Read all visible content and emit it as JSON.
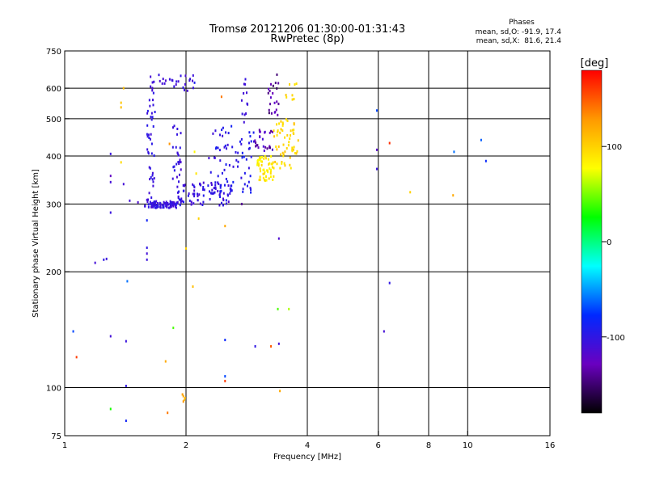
{
  "chart_data": {
    "type": "scatter",
    "title": "Tromsø 20121206 01:30:00-01:31:43",
    "subtitle": "RwPretec (8p)",
    "info": {
      "heading": "Phases",
      "line_o": "mean, sd,O: -91.9, 17.4",
      "line_x": "mean, sd,X:  81.6, 21.4"
    },
    "xlabel": "Frequency [MHz]",
    "ylabel": "Stationary phase Virtual Height [km]",
    "xscale": "log",
    "yscale": "log",
    "xlim": [
      1,
      16
    ],
    "ylim": [
      75,
      750
    ],
    "xticks": [
      1,
      2,
      4,
      6,
      8,
      10,
      16
    ],
    "xgrid": [
      2,
      4,
      6,
      8,
      10
    ],
    "yticks": [
      75,
      100,
      200,
      300,
      400,
      500,
      600,
      750
    ],
    "ygrid": [
      100,
      200,
      300,
      400,
      500,
      600
    ],
    "grid": true,
    "colorbar": {
      "label": "[deg]",
      "range": [
        -180,
        180
      ],
      "ticks": [
        100,
        0,
        -100
      ],
      "colors": [
        "#000000",
        "#6a00c0",
        "#0028ff",
        "#00ffff",
        "#00ff00",
        "#ffff00",
        "#ff9900",
        "#ff0000"
      ]
    },
    "clusters": [
      {
        "x": [
          1.58,
          1.9
        ],
        "y": [
          293,
          305
        ],
        "n": 90,
        "phase": [
          -115,
          -95
        ]
      },
      {
        "x": [
          1.9,
          2.6
        ],
        "y": [
          297,
          345
        ],
        "n": 90,
        "phase": [
          -115,
          -90
        ]
      },
      {
        "x": [
          2.3,
          2.95
        ],
        "y": [
          320,
          480
        ],
        "n": 70,
        "phase": [
          -110,
          -85
        ]
      },
      {
        "x": [
          1.6,
          1.68
        ],
        "y": [
          305,
          600
        ],
        "n": 40,
        "phase": [
          -110,
          -95
        ]
      },
      {
        "x": [
          1.6,
          2.1
        ],
        "y": [
          590,
          650
        ],
        "n": 30,
        "phase": [
          -115,
          -100
        ]
      },
      {
        "x": [
          1.85,
          1.95
        ],
        "y": [
          320,
          490
        ],
        "n": 25,
        "phase": [
          -115,
          -95
        ]
      },
      {
        "x": [
          2.75,
          2.85
        ],
        "y": [
          480,
          640
        ],
        "n": 12,
        "phase": [
          -110,
          -100
        ]
      },
      {
        "x": [
          2.95,
          3.3
        ],
        "y": [
          395,
          470
        ],
        "n": 25,
        "phase": [
          -145,
          -110
        ]
      },
      {
        "x": [
          3.2,
          3.4
        ],
        "y": [
          510,
          660
        ],
        "n": 22,
        "phase": [
          -155,
          -120
        ]
      },
      {
        "x": [
          3.0,
          3.3
        ],
        "y": [
          345,
          400
        ],
        "n": 55,
        "phase": [
          75,
          100
        ]
      },
      {
        "x": [
          3.3,
          3.8
        ],
        "y": [
          370,
          500
        ],
        "n": 60,
        "phase": [
          85,
          110
        ]
      },
      {
        "x": [
          3.5,
          3.8
        ],
        "y": [
          560,
          620
        ],
        "n": 8,
        "phase": [
          90,
          105
        ]
      }
    ],
    "points": [
      {
        "x": 1.3,
        "y": 405,
        "phase": -105
      },
      {
        "x": 1.3,
        "y": 355,
        "phase": -125
      },
      {
        "x": 1.3,
        "y": 342,
        "phase": -110
      },
      {
        "x": 1.3,
        "y": 285,
        "phase": -105
      },
      {
        "x": 1.25,
        "y": 215,
        "phase": -100
      },
      {
        "x": 1.27,
        "y": 216,
        "phase": -105
      },
      {
        "x": 1.19,
        "y": 211,
        "phase": -110
      },
      {
        "x": 1.4,
        "y": 338,
        "phase": -110
      },
      {
        "x": 1.38,
        "y": 550,
        "phase": 105
      },
      {
        "x": 1.38,
        "y": 535,
        "phase": 110
      },
      {
        "x": 1.4,
        "y": 600,
        "phase": 110
      },
      {
        "x": 1.38,
        "y": 385,
        "phase": 95
      },
      {
        "x": 1.45,
        "y": 306,
        "phase": -110
      },
      {
        "x": 1.52,
        "y": 303,
        "phase": -115
      },
      {
        "x": 1.6,
        "y": 272,
        "phase": -85
      },
      {
        "x": 1.6,
        "y": 231,
        "phase": -100
      },
      {
        "x": 1.6,
        "y": 223,
        "phase": -110
      },
      {
        "x": 1.6,
        "y": 215,
        "phase": -105
      },
      {
        "x": 1.43,
        "y": 189,
        "phase": -60
      },
      {
        "x": 1.3,
        "y": 136,
        "phase": -110
      },
      {
        "x": 1.42,
        "y": 132,
        "phase": -105
      },
      {
        "x": 1.05,
        "y": 140,
        "phase": -70
      },
      {
        "x": 1.07,
        "y": 120,
        "phase": 160
      },
      {
        "x": 1.3,
        "y": 88,
        "phase": 30
      },
      {
        "x": 1.42,
        "y": 101,
        "phase": -100
      },
      {
        "x": 1.42,
        "y": 82,
        "phase": -85
      },
      {
        "x": 1.97,
        "y": 95,
        "phase": 120
      },
      {
        "x": 1.98,
        "y": 93,
        "phase": 110
      },
      {
        "x": 1.96,
        "y": 96,
        "phase": 125
      },
      {
        "x": 1.99,
        "y": 94,
        "phase": 115
      },
      {
        "x": 1.97,
        "y": 92,
        "phase": 130
      },
      {
        "x": 1.8,
        "y": 86,
        "phase": 140
      },
      {
        "x": 1.78,
        "y": 117,
        "phase": 120
      },
      {
        "x": 1.86,
        "y": 143,
        "phase": 40
      },
      {
        "x": 2.08,
        "y": 183,
        "phase": 110
      },
      {
        "x": 2.0,
        "y": 230,
        "phase": 100
      },
      {
        "x": 2.15,
        "y": 275,
        "phase": 100
      },
      {
        "x": 2.5,
        "y": 133,
        "phase": -80
      },
      {
        "x": 2.5,
        "y": 107,
        "phase": -70
      },
      {
        "x": 2.5,
        "y": 104,
        "phase": 160
      },
      {
        "x": 2.5,
        "y": 263,
        "phase": 120
      },
      {
        "x": 2.97,
        "y": 128,
        "phase": -100
      },
      {
        "x": 3.25,
        "y": 128,
        "phase": 150
      },
      {
        "x": 3.4,
        "y": 130,
        "phase": -110
      },
      {
        "x": 3.38,
        "y": 160,
        "phase": 40
      },
      {
        "x": 3.42,
        "y": 98,
        "phase": 120
      },
      {
        "x": 3.4,
        "y": 244,
        "phase": -115
      },
      {
        "x": 3.6,
        "y": 160,
        "phase": 60
      },
      {
        "x": 2.1,
        "y": 410,
        "phase": 80
      },
      {
        "x": 2.12,
        "y": 360,
        "phase": 90
      },
      {
        "x": 1.82,
        "y": 430,
        "phase": 130
      },
      {
        "x": 2.45,
        "y": 570,
        "phase": 140
      },
      {
        "x": 2.1,
        "y": 620,
        "phase": -90
      },
      {
        "x": 2.28,
        "y": 395,
        "phase": -110
      },
      {
        "x": 2.75,
        "y": 300,
        "phase": -140
      },
      {
        "x": 5.95,
        "y": 525,
        "phase": -70
      },
      {
        "x": 5.95,
        "y": 415,
        "phase": -120
      },
      {
        "x": 5.95,
        "y": 370,
        "phase": -105
      },
      {
        "x": 6.4,
        "y": 432,
        "phase": 165
      },
      {
        "x": 6.4,
        "y": 187,
        "phase": -100
      },
      {
        "x": 6.2,
        "y": 140,
        "phase": -110
      },
      {
        "x": 7.2,
        "y": 322,
        "phase": 100
      },
      {
        "x": 9.2,
        "y": 316,
        "phase": 120
      },
      {
        "x": 9.25,
        "y": 410,
        "phase": -60
      },
      {
        "x": 10.8,
        "y": 440,
        "phase": -65
      },
      {
        "x": 11.1,
        "y": 388,
        "phase": -80
      }
    ]
  }
}
